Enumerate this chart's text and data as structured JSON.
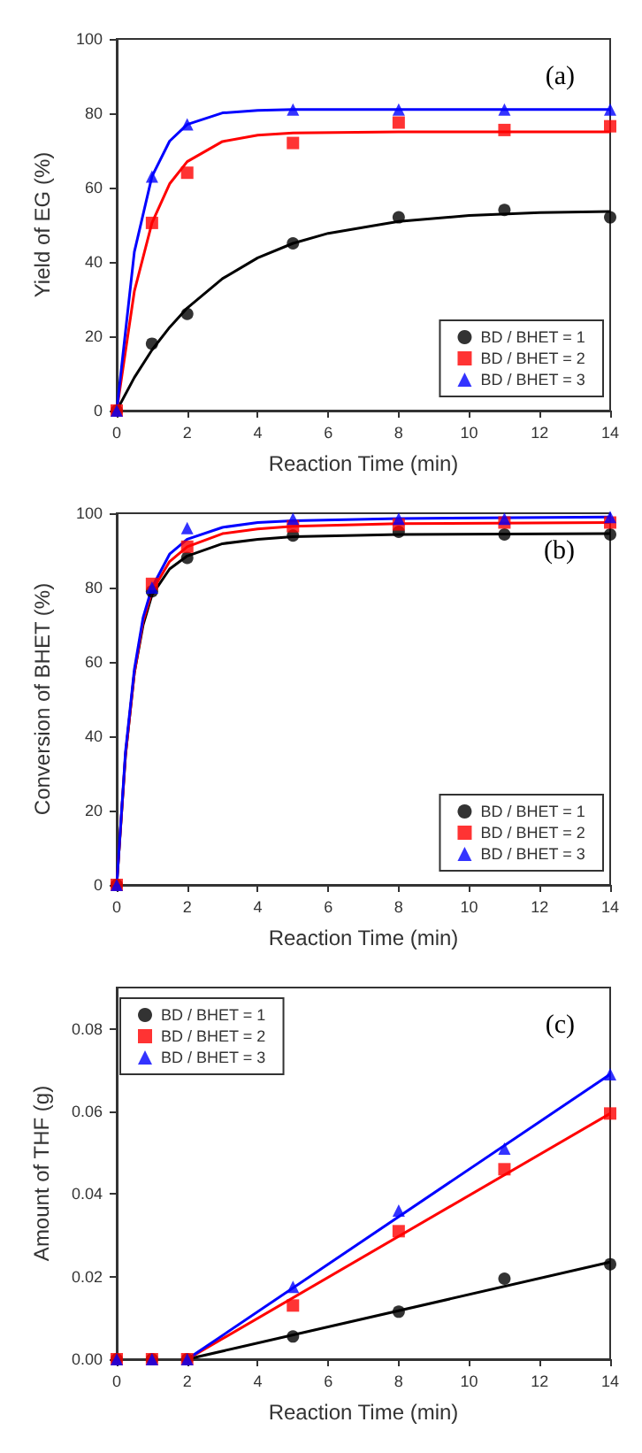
{
  "chart_data": [
    {
      "type": "scatter",
      "xlabel": "Reaction Time (min)",
      "ylabel": "Yield of EG (%)",
      "annotations": [
        "(a)"
      ],
      "x": [
        0,
        1,
        2,
        5,
        8,
        11,
        14
      ],
      "xlim": [
        0,
        14
      ],
      "xticks": [
        0,
        2,
        4,
        6,
        8,
        10,
        12,
        14
      ],
      "ylim": [
        0,
        100
      ],
      "yticks": [
        0,
        20,
        40,
        60,
        80,
        100
      ],
      "grid": false,
      "legend": "bottom right",
      "series": [
        {
          "name": "BD / BHET = 1",
          "color": "#000000",
          "marker": "circle",
          "values": [
            0,
            18,
            26,
            45,
            52,
            54,
            52
          ]
        },
        {
          "name": "BD / BHET = 2",
          "color": "#ff0000",
          "marker": "square",
          "values": [
            0,
            50.5,
            64,
            72,
            77.5,
            75.5,
            76.5
          ]
        },
        {
          "name": "BD / BHET = 3",
          "color": "#0000ff",
          "marker": "triangle",
          "values": [
            0,
            63,
            77,
            81,
            81,
            81,
            81
          ]
        },
        {
          "type": "line",
          "color": "#000000",
          "marker": "none",
          "x": [
            0,
            0.5,
            1,
            1.5,
            2,
            3,
            4,
            5,
            6,
            8,
            10,
            12,
            14
          ],
          "values": [
            0,
            8.9,
            16.3,
            22.4,
            27.6,
            35.5,
            41.1,
            45,
            47.7,
            50.9,
            52.5,
            53.3,
            53.6
          ]
        },
        {
          "type": "line",
          "color": "#ff0000",
          "marker": "none",
          "x": [
            0,
            0.5,
            1,
            1.5,
            2,
            3,
            4,
            5,
            8,
            14
          ],
          "values": [
            0,
            32.1,
            50.5,
            61,
            67,
            72.4,
            74.1,
            74.7,
            75,
            75
          ]
        },
        {
          "type": "line",
          "color": "#0000ff",
          "marker": "none",
          "x": [
            0,
            0.5,
            1,
            1.5,
            2,
            3,
            4,
            5,
            14
          ],
          "values": [
            0,
            42.7,
            63,
            72.5,
            77,
            80.1,
            80.8,
            81,
            81
          ]
        }
      ]
    },
    {
      "type": "scatter",
      "xlabel": "Reaction Time (min)",
      "ylabel": "Conversion of BHET (%)",
      "annotations": [
        "(b)"
      ],
      "x": [
        0,
        1,
        2,
        5,
        8,
        11,
        14
      ],
      "xlim": [
        0,
        14
      ],
      "xticks": [
        0,
        2,
        4,
        6,
        8,
        10,
        12,
        14
      ],
      "ylim": [
        0,
        100
      ],
      "yticks": [
        0,
        20,
        40,
        60,
        80,
        100
      ],
      "grid": false,
      "legend": "bottom right",
      "series": [
        {
          "name": "BD / BHET = 1",
          "color": "#000000",
          "marker": "circle",
          "values": [
            0,
            79,
            88,
            94,
            95,
            94.3,
            94.3
          ]
        },
        {
          "name": "BD / BHET = 2",
          "color": "#ff0000",
          "marker": "square",
          "values": [
            0,
            81,
            91,
            96.5,
            97,
            97.5,
            97.5
          ]
        },
        {
          "name": "BD / BHET = 3",
          "color": "#0000ff",
          "marker": "triangle",
          "values": [
            0,
            80,
            96,
            98.5,
            98.5,
            98.5,
            99
          ]
        },
        {
          "type": "line",
          "color": "#000000",
          "marker": "none",
          "x": [
            0,
            0.25,
            0.5,
            0.75,
            1,
            1.5,
            2,
            3,
            4,
            5,
            8,
            14
          ],
          "values": [
            0,
            35,
            57,
            70,
            78,
            85,
            88.5,
            91.8,
            93,
            93.7,
            94.3,
            94.5
          ]
        },
        {
          "type": "line",
          "color": "#ff0000",
          "marker": "none",
          "x": [
            0,
            0.25,
            0.5,
            0.75,
            1,
            1.5,
            2,
            3,
            4,
            5,
            8,
            14
          ],
          "values": [
            0,
            35,
            57,
            71,
            79,
            87,
            91,
            94.5,
            95.8,
            96.5,
            97.2,
            97.5
          ]
        },
        {
          "type": "line",
          "color": "#0000ff",
          "marker": "none",
          "x": [
            0,
            0.25,
            0.5,
            0.75,
            1,
            1.5,
            2,
            3,
            4,
            5,
            8,
            14
          ],
          "values": [
            0,
            36,
            58,
            72,
            80,
            89,
            93,
            96.2,
            97.5,
            98,
            98.6,
            99
          ]
        }
      ]
    },
    {
      "type": "scatter",
      "xlabel": "Reaction Time (min)",
      "ylabel": "Amount of THF (g)",
      "annotations": [
        "(c)"
      ],
      "x": [
        0,
        1,
        2,
        5,
        8,
        11,
        14
      ],
      "xlim": [
        0,
        14
      ],
      "xticks": [
        0,
        2,
        4,
        6,
        8,
        10,
        12,
        14
      ],
      "ylim": [
        0,
        0.09
      ],
      "yticks": [
        {
          "value": 0,
          "label": "0.00"
        },
        0.02,
        0.04,
        0.06,
        0.08
      ],
      "grid": false,
      "legend": "top left",
      "series": [
        {
          "name": "BD / BHET = 1",
          "color": "#000000",
          "marker": "circle",
          "values": [
            0,
            0,
            0,
            0.0055,
            0.0115,
            0.0195,
            0.023
          ]
        },
        {
          "name": "BD / BHET = 2",
          "color": "#ff0000",
          "marker": "square",
          "values": [
            0,
            0,
            0,
            0.013,
            0.031,
            0.046,
            0.0595
          ]
        },
        {
          "name": "BD / BHET = 3",
          "color": "#0000ff",
          "marker": "triangle",
          "values": [
            0,
            0,
            0,
            0.0175,
            0.036,
            0.051,
            0.069
          ]
        },
        {
          "type": "line",
          "color": "#000000",
          "marker": "none",
          "x": [
            2,
            14
          ],
          "values": [
            0,
            0.0235
          ]
        },
        {
          "type": "line",
          "color": "#ff0000",
          "marker": "none",
          "x": [
            2,
            14
          ],
          "values": [
            0,
            0.0595
          ]
        },
        {
          "type": "line",
          "color": "#0000ff",
          "marker": "none",
          "x": [
            2,
            14
          ],
          "values": [
            0,
            0.069
          ]
        }
      ]
    }
  ]
}
